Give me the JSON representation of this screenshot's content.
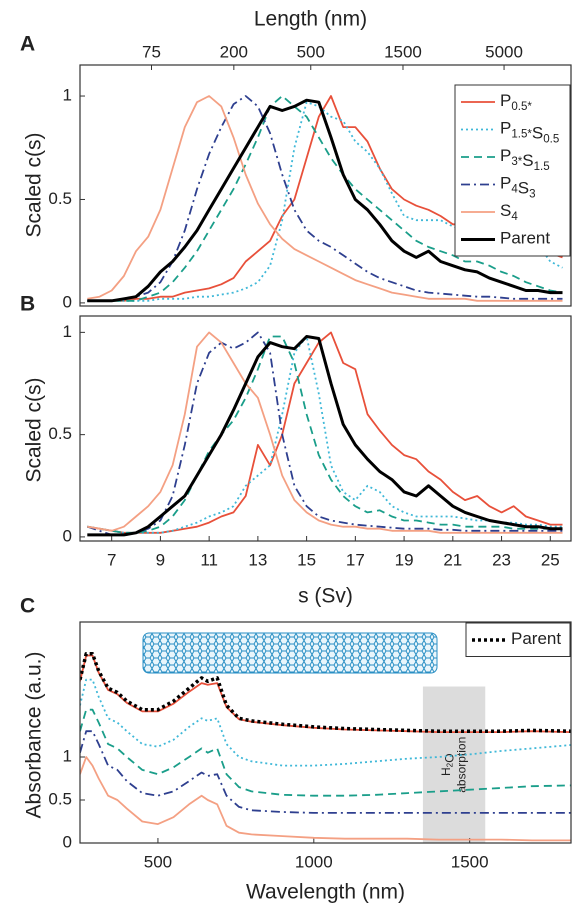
{
  "chart_data": [
    {
      "type": "line",
      "panel": "A",
      "ylabel": "Scaled c(s)",
      "x2label": "Length (nm)",
      "xlim": [
        5.7,
        25.85
      ],
      "ylim": [
        -0.015,
        1.15
      ],
      "yticks": [
        0,
        0.5,
        1
      ],
      "x2scale": "log",
      "x2lim": [
        32,
        11100
      ],
      "x2ticks": [
        75,
        200,
        500,
        1500,
        5000
      ],
      "legend": "upper right",
      "x": [
        6,
        6.5,
        7,
        7.5,
        8,
        8.5,
        9,
        9.5,
        10,
        10.5,
        11,
        11.5,
        12,
        12.5,
        13,
        13.5,
        14,
        14.5,
        15,
        15.5,
        16,
        16.5,
        17,
        17.5,
        18,
        18.5,
        19,
        19.5,
        20,
        20.5,
        21,
        21.5,
        22,
        22.5,
        23,
        23.5,
        24,
        24.5,
        25,
        25.5
      ],
      "series": [
        {
          "name": "P0.5*",
          "color": "#e8503a",
          "linestyle": "solid",
          "values": [
            0.01,
            0.01,
            0.01,
            0.01,
            0.02,
            0.02,
            0.03,
            0.03,
            0.05,
            0.06,
            0.07,
            0.09,
            0.12,
            0.2,
            0.25,
            0.3,
            0.42,
            0.5,
            0.7,
            0.9,
            1.0,
            0.85,
            0.85,
            0.78,
            0.65,
            0.55,
            0.5,
            0.47,
            0.45,
            0.42,
            0.38,
            0.38,
            0.35,
            0.32,
            0.3,
            0.33,
            0.35,
            0.28,
            0.24,
            0.22
          ]
        },
        {
          "name": "P1.5*S0.5",
          "color": "#3fb8d8",
          "linestyle": "dotted",
          "values": [
            0.01,
            0.01,
            0.01,
            0.01,
            0.01,
            0.01,
            0.02,
            0.02,
            0.02,
            0.03,
            0.03,
            0.04,
            0.05,
            0.07,
            0.1,
            0.18,
            0.4,
            0.75,
            0.97,
            0.95,
            0.9,
            0.88,
            0.78,
            0.73,
            0.65,
            0.53,
            0.42,
            0.4,
            0.4,
            0.4,
            0.37,
            0.35,
            0.33,
            0.32,
            0.3,
            0.3,
            0.3,
            0.28,
            0.2,
            0.17
          ]
        },
        {
          "name": "P3*S1.5",
          "color": "#1a9e8a",
          "linestyle": "dashed",
          "values": [
            0.01,
            0.01,
            0.01,
            0.01,
            0.01,
            0.03,
            0.05,
            0.1,
            0.17,
            0.25,
            0.35,
            0.45,
            0.55,
            0.67,
            0.8,
            0.95,
            1.0,
            0.95,
            0.9,
            0.8,
            0.7,
            0.62,
            0.55,
            0.5,
            0.45,
            0.4,
            0.35,
            0.3,
            0.27,
            0.25,
            0.23,
            0.2,
            0.2,
            0.18,
            0.15,
            0.13,
            0.1,
            0.08,
            0.06,
            0.05
          ]
        },
        {
          "name": "P4S3",
          "color": "#2e3f8f",
          "linestyle": "dashdot",
          "values": [
            0.01,
            0.01,
            0.01,
            0.02,
            0.03,
            0.05,
            0.1,
            0.2,
            0.35,
            0.55,
            0.72,
            0.85,
            0.96,
            1.0,
            0.95,
            0.82,
            0.62,
            0.45,
            0.35,
            0.3,
            0.27,
            0.23,
            0.19,
            0.15,
            0.12,
            0.1,
            0.08,
            0.06,
            0.05,
            0.045,
            0.04,
            0.035,
            0.03,
            0.03,
            0.025,
            0.02,
            0.02,
            0.02,
            0.02,
            0.02
          ]
        },
        {
          "name": "S4",
          "color": "#f4a083",
          "linestyle": "solid",
          "values": [
            0.02,
            0.03,
            0.06,
            0.13,
            0.25,
            0.32,
            0.45,
            0.65,
            0.85,
            0.97,
            1.0,
            0.95,
            0.8,
            0.62,
            0.48,
            0.38,
            0.31,
            0.26,
            0.23,
            0.2,
            0.17,
            0.14,
            0.11,
            0.09,
            0.07,
            0.05,
            0.04,
            0.03,
            0.02,
            0.02,
            0.02,
            0.02,
            0.01,
            0.01,
            0.01,
            0.01,
            0.01,
            0.01,
            0.01,
            0.01
          ]
        },
        {
          "name": "Parent",
          "color": "#000000",
          "linestyle": "bold",
          "values": [
            0.01,
            0.01,
            0.01,
            0.02,
            0.03,
            0.08,
            0.15,
            0.2,
            0.27,
            0.35,
            0.45,
            0.55,
            0.65,
            0.75,
            0.85,
            0.95,
            0.93,
            0.95,
            0.98,
            0.97,
            0.8,
            0.62,
            0.5,
            0.45,
            0.38,
            0.3,
            0.25,
            0.22,
            0.25,
            0.2,
            0.18,
            0.16,
            0.15,
            0.12,
            0.1,
            0.08,
            0.06,
            0.06,
            0.05,
            0.05
          ]
        }
      ]
    },
    {
      "type": "line",
      "panel": "B",
      "ylabel": "Scaled c(s)",
      "xlabel": "s (Sv)",
      "xlim": [
        5.7,
        25.85
      ],
      "ylim": [
        -0.02,
        1.08
      ],
      "yticks": [
        0,
        0.5,
        1
      ],
      "xticks": [
        7,
        9,
        11,
        13,
        15,
        17,
        19,
        21,
        23,
        25
      ],
      "x": [
        6,
        6.5,
        7,
        7.5,
        8,
        8.5,
        9,
        9.5,
        10,
        10.5,
        11,
        11.5,
        12,
        12.5,
        13,
        13.5,
        14,
        14.5,
        15,
        15.5,
        16,
        16.5,
        17,
        17.5,
        18,
        18.5,
        19,
        19.5,
        20,
        20.5,
        21,
        21.5,
        22,
        22.5,
        23,
        23.5,
        24,
        24.5,
        25,
        25.5
      ],
      "series": [
        {
          "color": "#e8503a",
          "linestyle": "solid",
          "values": [
            0.05,
            0.04,
            0.03,
            0.02,
            0.02,
            0.02,
            0.02,
            0.03,
            0.04,
            0.05,
            0.07,
            0.1,
            0.12,
            0.2,
            0.45,
            0.35,
            0.5,
            0.75,
            0.85,
            0.95,
            1.0,
            0.85,
            0.82,
            0.6,
            0.52,
            0.45,
            0.4,
            0.38,
            0.32,
            0.28,
            0.22,
            0.18,
            0.2,
            0.15,
            0.12,
            0.15,
            0.1,
            0.08,
            0.06,
            0.06
          ]
        },
        {
          "color": "#3fb8d8",
          "linestyle": "dotted",
          "values": [
            0.05,
            0.04,
            0.03,
            0.02,
            0.02,
            0.02,
            0.02,
            0.03,
            0.05,
            0.07,
            0.1,
            0.12,
            0.15,
            0.25,
            0.3,
            0.35,
            0.6,
            0.9,
            0.98,
            0.7,
            0.35,
            0.22,
            0.18,
            0.25,
            0.22,
            0.15,
            0.12,
            0.1,
            0.1,
            0.1,
            0.1,
            0.09,
            0.08,
            0.08,
            0.07,
            0.07,
            0.06,
            0.06,
            0.05,
            0.05
          ]
        },
        {
          "color": "#1a9e8a",
          "linestyle": "dashed",
          "values": [
            0.05,
            0.04,
            0.03,
            0.02,
            0.02,
            0.03,
            0.05,
            0.1,
            0.18,
            0.3,
            0.42,
            0.5,
            0.57,
            0.68,
            0.82,
            0.98,
            0.98,
            0.85,
            0.6,
            0.4,
            0.28,
            0.2,
            0.15,
            0.12,
            0.13,
            0.1,
            0.08,
            0.08,
            0.07,
            0.06,
            0.06,
            0.05,
            0.05,
            0.05,
            0.05,
            0.04,
            0.04,
            0.04,
            0.04,
            0.04
          ]
        },
        {
          "color": "#2e3f8f",
          "linestyle": "dashdot",
          "values": [
            0.05,
            0.03,
            0.01,
            0.01,
            0.02,
            0.04,
            0.08,
            0.2,
            0.45,
            0.75,
            0.9,
            0.95,
            0.92,
            0.95,
            1.0,
            0.9,
            0.5,
            0.25,
            0.15,
            0.1,
            0.08,
            0.07,
            0.06,
            0.055,
            0.05,
            0.045,
            0.04,
            0.04,
            0.04,
            0.035,
            0.035,
            0.03,
            0.03,
            0.03,
            0.03,
            0.03,
            0.03,
            0.03,
            0.03,
            0.03
          ]
        },
        {
          "color": "#f4a083",
          "linestyle": "solid",
          "values": [
            0.05,
            0.04,
            0.03,
            0.05,
            0.1,
            0.15,
            0.22,
            0.35,
            0.6,
            0.93,
            1.0,
            0.95,
            0.85,
            0.75,
            0.68,
            0.5,
            0.3,
            0.18,
            0.12,
            0.08,
            0.06,
            0.05,
            0.05,
            0.04,
            0.04,
            0.03,
            0.03,
            0.03,
            0.03,
            0.02,
            0.02,
            0.02,
            0.02,
            0.02,
            0.02,
            0.02,
            0.02,
            0.02,
            0.02,
            0.02
          ]
        },
        {
          "color": "#000000",
          "linestyle": "bold",
          "values": [
            0.01,
            0.01,
            0.01,
            0.01,
            0.02,
            0.05,
            0.1,
            0.15,
            0.2,
            0.3,
            0.4,
            0.5,
            0.62,
            0.75,
            0.88,
            0.95,
            0.93,
            0.92,
            0.98,
            0.97,
            0.75,
            0.55,
            0.45,
            0.38,
            0.32,
            0.28,
            0.22,
            0.2,
            0.25,
            0.2,
            0.15,
            0.12,
            0.1,
            0.08,
            0.07,
            0.06,
            0.05,
            0.05,
            0.04,
            0.04
          ]
        }
      ]
    },
    {
      "type": "line",
      "panel": "C",
      "ylabel": "Absorbance (a.u.)",
      "xlabel": "Wavelength (nm)",
      "xlim": [
        250,
        1825
      ],
      "ylim": [
        0,
        2.57
      ],
      "yticks": [
        0,
        0.5,
        1
      ],
      "xticks": [
        500,
        1000,
        1500
      ],
      "legend": "upper right",
      "shaded_region": {
        "xlim": [
          1350,
          1550
        ],
        "labels": [
          "H2O",
          "absorption"
        ]
      },
      "x": [
        250,
        270,
        290,
        310,
        340,
        370,
        400,
        450,
        500,
        550,
        600,
        640,
        660,
        690,
        720,
        760,
        800,
        900,
        1000,
        1100,
        1200,
        1300,
        1400,
        1500,
        1600,
        1700,
        1825
      ],
      "series": [
        {
          "color": "#e8503a",
          "linestyle": "solid",
          "values": [
            1.88,
            2.18,
            2.18,
            1.98,
            1.78,
            1.73,
            1.63,
            1.53,
            1.53,
            1.62,
            1.76,
            1.86,
            1.84,
            1.86,
            1.58,
            1.44,
            1.41,
            1.37,
            1.34,
            1.32,
            1.31,
            1.3,
            1.29,
            1.29,
            1.29,
            1.3,
            1.29
          ]
        },
        {
          "name": "Parent",
          "color": "#000000",
          "linestyle": "bold-dotted",
          "values": [
            1.9,
            2.2,
            2.2,
            2.0,
            1.8,
            1.75,
            1.65,
            1.55,
            1.55,
            1.65,
            1.8,
            1.92,
            1.88,
            1.92,
            1.6,
            1.45,
            1.42,
            1.38,
            1.35,
            1.33,
            1.32,
            1.31,
            1.3,
            1.3,
            1.3,
            1.31,
            1.3
          ]
        },
        {
          "color": "#3fb8d8",
          "linestyle": "dotted",
          "values": [
            1.6,
            1.9,
            1.9,
            1.7,
            1.45,
            1.4,
            1.3,
            1.15,
            1.12,
            1.2,
            1.35,
            1.45,
            1.42,
            1.45,
            1.15,
            1.0,
            0.95,
            0.9,
            0.9,
            0.92,
            0.95,
            0.98,
            1.0,
            1.03,
            1.07,
            1.1,
            1.14
          ]
        },
        {
          "color": "#1a9e8a",
          "linestyle": "dashed",
          "values": [
            1.3,
            1.55,
            1.55,
            1.4,
            1.15,
            1.1,
            1.0,
            0.85,
            0.8,
            0.88,
            1.0,
            1.1,
            1.05,
            1.1,
            0.8,
            0.65,
            0.6,
            0.56,
            0.55,
            0.55,
            0.56,
            0.58,
            0.6,
            0.62,
            0.64,
            0.66,
            0.67
          ]
        },
        {
          "color": "#2e3f8f",
          "linestyle": "dashdot",
          "values": [
            1.05,
            1.3,
            1.3,
            1.15,
            0.9,
            0.85,
            0.72,
            0.58,
            0.55,
            0.6,
            0.72,
            0.82,
            0.78,
            0.8,
            0.55,
            0.42,
            0.38,
            0.36,
            0.35,
            0.35,
            0.35,
            0.35,
            0.35,
            0.35,
            0.35,
            0.35,
            0.35
          ]
        },
        {
          "color": "#f4a083",
          "linestyle": "solid",
          "values": [
            0.8,
            1.0,
            0.9,
            0.75,
            0.55,
            0.5,
            0.4,
            0.25,
            0.22,
            0.3,
            0.45,
            0.55,
            0.5,
            0.45,
            0.2,
            0.12,
            0.1,
            0.08,
            0.06,
            0.05,
            0.05,
            0.05,
            0.04,
            0.04,
            0.04,
            0.03,
            0.03
          ]
        }
      ]
    }
  ]
}
